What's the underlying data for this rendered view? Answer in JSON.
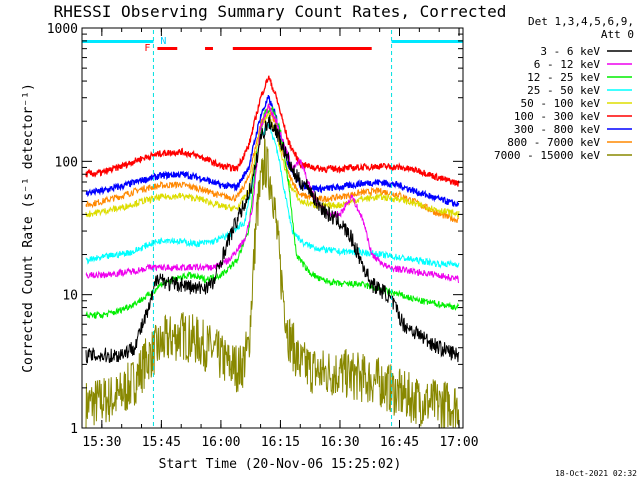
{
  "chart_data": {
    "type": "line",
    "title": "RHESSI Observing Summary Count Rates, Corrected",
    "xlabel": "Start Time (20-Nov-06 15:25:02)",
    "ylabel": "Corrected Count Rate (s⁻¹ detector⁻¹)",
    "yscale": "log",
    "ylim": [
      1,
      1000
    ],
    "xlim": [
      "15:25",
      "17:01"
    ],
    "x_ticks": [
      "15:30",
      "15:45",
      "16:00",
      "16:15",
      "16:30",
      "16:45",
      "17:00"
    ],
    "y_ticks": [
      "1",
      "10",
      "100",
      "1000"
    ],
    "grid": false,
    "legend": {
      "placement": "outside-right",
      "header": [
        "Det 1,3,4,5,6,9,",
        "Att 0"
      ]
    },
    "timestamp": "18-Oct-2021 02:32",
    "flags": {
      "N_label": "N",
      "F_label": "F",
      "night_intervals": [
        [
          "15:25",
          "15:43"
        ],
        [
          "16:43",
          "17:01"
        ]
      ],
      "saa_markers": [
        "15:43",
        "16:43",
        "17:01"
      ],
      "flare_intervals": [
        [
          "15:44",
          "15:49"
        ],
        [
          "15:56",
          "15:58"
        ],
        [
          "16:03",
          "16:38"
        ]
      ]
    },
    "series": [
      {
        "name": "3 - 6 keV",
        "color": "#000000",
        "points": [
          [
            "15:26",
            3.5
          ],
          [
            "15:34",
            3.5
          ],
          [
            "15:38",
            4
          ],
          [
            "15:42",
            8
          ],
          [
            "15:44",
            14
          ],
          [
            "15:47",
            12
          ],
          [
            "15:50",
            12
          ],
          [
            "15:54",
            11
          ],
          [
            "15:58",
            12
          ],
          [
            "16:00",
            18
          ],
          [
            "16:02",
            26
          ],
          [
            "16:04",
            36
          ],
          [
            "16:06",
            48
          ],
          [
            "16:08",
            70
          ],
          [
            "16:10",
            150
          ],
          [
            "16:12",
            200
          ],
          [
            "16:14",
            170
          ],
          [
            "16:16",
            120
          ],
          [
            "16:18",
            85
          ],
          [
            "16:20",
            70
          ],
          [
            "16:22",
            65
          ],
          [
            "16:24",
            50
          ],
          [
            "16:27",
            40
          ],
          [
            "16:30",
            35
          ],
          [
            "16:33",
            26
          ],
          [
            "16:36",
            16
          ],
          [
            "16:38",
            12
          ],
          [
            "16:40",
            11
          ],
          [
            "16:42",
            10
          ],
          [
            "16:44",
            8
          ],
          [
            "16:46",
            6
          ],
          [
            "16:50",
            5
          ],
          [
            "16:55",
            4
          ],
          [
            "17:00",
            3.5
          ]
        ]
      },
      {
        "name": "6 - 12 keV",
        "color": "#ee00ee",
        "points": [
          [
            "15:26",
            14
          ],
          [
            "15:30",
            14
          ],
          [
            "15:34",
            14.5
          ],
          [
            "15:38",
            15
          ],
          [
            "15:42",
            16
          ],
          [
            "15:46",
            16
          ],
          [
            "15:50",
            16
          ],
          [
            "15:54",
            16
          ],
          [
            "15:58",
            16
          ],
          [
            "16:02",
            18
          ],
          [
            "16:06",
            26
          ],
          [
            "16:08",
            45
          ],
          [
            "16:10",
            180
          ],
          [
            "16:12",
            260
          ],
          [
            "16:14",
            200
          ],
          [
            "16:16",
            130
          ],
          [
            "16:18",
            90
          ],
          [
            "16:20",
            100
          ],
          [
            "16:22",
            70
          ],
          [
            "16:24",
            50
          ],
          [
            "16:27",
            40
          ],
          [
            "16:30",
            40
          ],
          [
            "16:33",
            55
          ],
          [
            "16:36",
            35
          ],
          [
            "16:38",
            20
          ],
          [
            "16:42",
            16
          ],
          [
            "16:48",
            15
          ],
          [
            "16:55",
            14
          ],
          [
            "17:00",
            13
          ]
        ]
      },
      {
        "name": "12 - 25 keV",
        "color": "#00ee00",
        "points": [
          [
            "15:26",
            7
          ],
          [
            "15:30",
            7
          ],
          [
            "15:34",
            7.5
          ],
          [
            "15:38",
            8.5
          ],
          [
            "15:42",
            10
          ],
          [
            "15:45",
            12
          ],
          [
            "15:48",
            13
          ],
          [
            "15:52",
            14
          ],
          [
            "15:56",
            13
          ],
          [
            "16:00",
            14
          ],
          [
            "16:04",
            18
          ],
          [
            "16:07",
            30
          ],
          [
            "16:09",
            110
          ],
          [
            "16:11",
            230
          ],
          [
            "16:13",
            250
          ],
          [
            "16:15",
            170
          ],
          [
            "16:17",
            70
          ],
          [
            "16:19",
            20
          ],
          [
            "16:22",
            15
          ],
          [
            "16:25",
            13
          ],
          [
            "16:30",
            12
          ],
          [
            "16:35",
            12
          ],
          [
            "16:40",
            11
          ],
          [
            "16:45",
            10
          ],
          [
            "16:50",
            9
          ],
          [
            "16:55",
            8.5
          ],
          [
            "17:00",
            8
          ]
        ]
      },
      {
        "name": "25 - 50 keV",
        "color": "#00ffff",
        "points": [
          [
            "15:26",
            18
          ],
          [
            "15:30",
            19
          ],
          [
            "15:34",
            20
          ],
          [
            "15:38",
            21
          ],
          [
            "15:42",
            24
          ],
          [
            "15:46",
            26
          ],
          [
            "15:50",
            25
          ],
          [
            "15:54",
            24
          ],
          [
            "15:58",
            25
          ],
          [
            "16:02",
            28
          ],
          [
            "16:06",
            35
          ],
          [
            "16:08",
            70
          ],
          [
            "16:10",
            150
          ],
          [
            "16:12",
            190
          ],
          [
            "16:14",
            130
          ],
          [
            "16:16",
            60
          ],
          [
            "16:18",
            30
          ],
          [
            "16:21",
            24
          ],
          [
            "16:25",
            22
          ],
          [
            "16:30",
            21
          ],
          [
            "16:35",
            21
          ],
          [
            "16:40",
            20
          ],
          [
            "16:45",
            19
          ],
          [
            "16:50",
            18
          ],
          [
            "16:55",
            17
          ],
          [
            "17:00",
            17
          ]
        ]
      },
      {
        "name": "50 - 100 keV",
        "color": "#dddd00",
        "points": [
          [
            "15:26",
            40
          ],
          [
            "15:30",
            42
          ],
          [
            "15:35",
            45
          ],
          [
            "15:40",
            50
          ],
          [
            "15:45",
            54
          ],
          [
            "15:50",
            55
          ],
          [
            "15:55",
            52
          ],
          [
            "16:00",
            46
          ],
          [
            "16:04",
            44
          ],
          [
            "16:07",
            60
          ],
          [
            "16:10",
            180
          ],
          [
            "16:12",
            230
          ],
          [
            "16:14",
            160
          ],
          [
            "16:17",
            70
          ],
          [
            "16:20",
            50
          ],
          [
            "16:25",
            46
          ],
          [
            "16:30",
            47
          ],
          [
            "16:35",
            52
          ],
          [
            "16:40",
            54
          ],
          [
            "16:45",
            52
          ],
          [
            "16:50",
            47
          ],
          [
            "16:55",
            43
          ],
          [
            "17:00",
            40
          ]
        ]
      },
      {
        "name": "100 - 300 keV",
        "color": "#ff0000",
        "points": [
          [
            "15:26",
            80
          ],
          [
            "15:30",
            82
          ],
          [
            "15:35",
            92
          ],
          [
            "15:40",
            105
          ],
          [
            "15:45",
            115
          ],
          [
            "15:50",
            118
          ],
          [
            "15:55",
            108
          ],
          [
            "16:00",
            92
          ],
          [
            "16:04",
            88
          ],
          [
            "16:07",
            130
          ],
          [
            "16:10",
            300
          ],
          [
            "16:12",
            430
          ],
          [
            "16:14",
            300
          ],
          [
            "16:17",
            140
          ],
          [
            "16:20",
            95
          ],
          [
            "16:25",
            88
          ],
          [
            "16:30",
            88
          ],
          [
            "16:35",
            90
          ],
          [
            "16:40",
            92
          ],
          [
            "16:45",
            90
          ],
          [
            "16:50",
            85
          ],
          [
            "16:55",
            75
          ],
          [
            "17:00",
            68
          ]
        ]
      },
      {
        "name": "300 - 800 keV",
        "color": "#0000ff",
        "points": [
          [
            "15:26",
            58
          ],
          [
            "15:30",
            60
          ],
          [
            "15:35",
            65
          ],
          [
            "15:40",
            72
          ],
          [
            "15:45",
            78
          ],
          [
            "15:50",
            80
          ],
          [
            "15:55",
            75
          ],
          [
            "16:00",
            66
          ],
          [
            "16:04",
            64
          ],
          [
            "16:07",
            90
          ],
          [
            "16:10",
            220
          ],
          [
            "16:12",
            300
          ],
          [
            "16:14",
            210
          ],
          [
            "16:17",
            95
          ],
          [
            "16:20",
            66
          ],
          [
            "16:25",
            62
          ],
          [
            "16:30",
            64
          ],
          [
            "16:35",
            68
          ],
          [
            "16:40",
            70
          ],
          [
            "16:45",
            66
          ],
          [
            "16:50",
            58
          ],
          [
            "16:55",
            52
          ],
          [
            "17:00",
            47
          ]
        ]
      },
      {
        "name": "800 - 7000 keV",
        "color": "#ff8800",
        "points": [
          [
            "15:26",
            47
          ],
          [
            "15:30",
            50
          ],
          [
            "15:35",
            55
          ],
          [
            "15:40",
            62
          ],
          [
            "15:45",
            66
          ],
          [
            "15:50",
            67
          ],
          [
            "15:55",
            62
          ],
          [
            "16:00",
            55
          ],
          [
            "16:04",
            53
          ],
          [
            "16:07",
            75
          ],
          [
            "16:10",
            190
          ],
          [
            "16:12",
            260
          ],
          [
            "16:14",
            180
          ],
          [
            "16:17",
            80
          ],
          [
            "16:20",
            56
          ],
          [
            "16:25",
            52
          ],
          [
            "16:30",
            54
          ],
          [
            "16:35",
            58
          ],
          [
            "16:40",
            60
          ],
          [
            "16:45",
            56
          ],
          [
            "16:50",
            48
          ],
          [
            "16:55",
            40
          ],
          [
            "17:00",
            36
          ]
        ]
      },
      {
        "name": "7000 - 15000 keV",
        "color": "#888800",
        "points": [
          [
            "15:26",
            1.5
          ],
          [
            "15:30",
            1.6
          ],
          [
            "15:34",
            1.7
          ],
          [
            "15:38",
            2.2
          ],
          [
            "15:42",
            3.5
          ],
          [
            "15:46",
            4.5
          ],
          [
            "15:50",
            5
          ],
          [
            "15:54",
            4.5
          ],
          [
            "15:58",
            3.8
          ],
          [
            "16:02",
            3
          ],
          [
            "16:05",
            2.8
          ],
          [
            "16:07",
            4
          ],
          [
            "16:09",
            40
          ],
          [
            "16:11",
            100
          ],
          [
            "16:13",
            65
          ],
          [
            "16:15",
            15
          ],
          [
            "16:17",
            5
          ],
          [
            "16:20",
            3
          ],
          [
            "16:25",
            2.6
          ],
          [
            "16:30",
            2.6
          ],
          [
            "16:35",
            2.4
          ],
          [
            "16:40",
            2.2
          ],
          [
            "16:45",
            1.8
          ],
          [
            "16:50",
            1.6
          ],
          [
            "16:55",
            1.5
          ],
          [
            "17:00",
            1.5
          ]
        ]
      }
    ]
  }
}
